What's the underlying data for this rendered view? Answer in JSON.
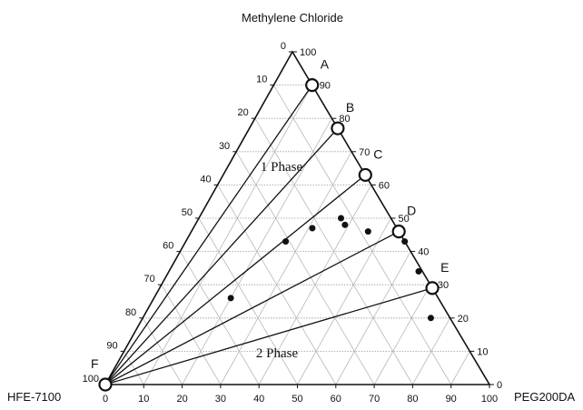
{
  "chart_data": {
    "type": "scatter",
    "title": "",
    "vertex_labels": {
      "top": "Methylene Chloride",
      "left": "HFE-7100",
      "right": "PEG200DA"
    },
    "axes": {
      "bottom_ticks": [
        "0",
        "10",
        "20",
        "30",
        "40",
        "50",
        "60",
        "70",
        "80",
        "90",
        "100"
      ],
      "left_ticks": [
        "0",
        "10",
        "20",
        "30",
        "40",
        "50",
        "60",
        "70",
        "80",
        "90",
        "100"
      ],
      "right_ticks": [
        "0",
        "10",
        "20",
        "30",
        "40",
        "50",
        "60",
        "70",
        "80",
        "90",
        "100"
      ]
    },
    "grid": true,
    "tie_line_origin": {
      "label": "F",
      "hfe": 100,
      "peg": 0,
      "mc": 0
    },
    "tie_line_endpoints": [
      {
        "label": "A",
        "mc": 90,
        "peg": 10
      },
      {
        "label": "B",
        "mc": 77,
        "peg": 23
      },
      {
        "label": "C",
        "mc": 63,
        "peg": 37
      },
      {
        "label": "D",
        "mc": 46,
        "peg": 54
      },
      {
        "label": "E",
        "mc": 29,
        "peg": 71
      }
    ],
    "data_points": [
      {
        "mc": 26,
        "peg": 20
      },
      {
        "mc": 43,
        "peg": 26
      },
      {
        "mc": 47,
        "peg": 31
      },
      {
        "mc": 50,
        "peg": 37
      },
      {
        "mc": 48,
        "peg": 39
      },
      {
        "mc": 46,
        "peg": 46
      },
      {
        "mc": 43,
        "peg": 57
      },
      {
        "mc": 34,
        "peg": 65
      },
      {
        "mc": 20,
        "peg": 75
      }
    ],
    "region_labels": [
      {
        "text": "1 Phase",
        "region": "upper"
      },
      {
        "text": "2 Phase",
        "region": "lower"
      }
    ]
  }
}
